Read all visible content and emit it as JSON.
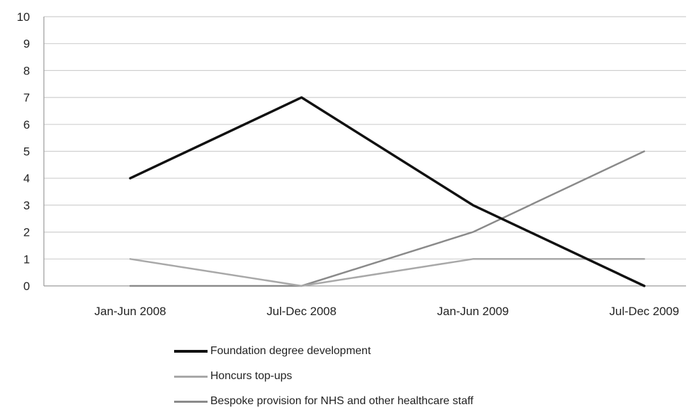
{
  "chart_data": {
    "type": "line",
    "categories": [
      "Jan-Jun 2008",
      "Jul-Dec 2008",
      "Jan-Jun 2009",
      "Jul-Dec 2009"
    ],
    "ylim": [
      0,
      10
    ],
    "yticks": [
      "0",
      "1",
      "2",
      "3",
      "4",
      "5",
      "6",
      "7",
      "8",
      "9",
      "10"
    ],
    "grid": true,
    "legend_position": "bottom",
    "series": [
      {
        "name": "Foundation degree development",
        "values": [
          4,
          7,
          3,
          0
        ],
        "color": "#111111",
        "width": 3.5
      },
      {
        "name": "Honcurs top-ups",
        "values": [
          1,
          0,
          1,
          1
        ],
        "color": "#a8a8a8",
        "width": 2.5
      },
      {
        "name": "Bespoke provision for NHS and other healthcare staff",
        "values": [
          0,
          0,
          2,
          5
        ],
        "color": "#8a8a8a",
        "width": 2.5
      }
    ]
  }
}
